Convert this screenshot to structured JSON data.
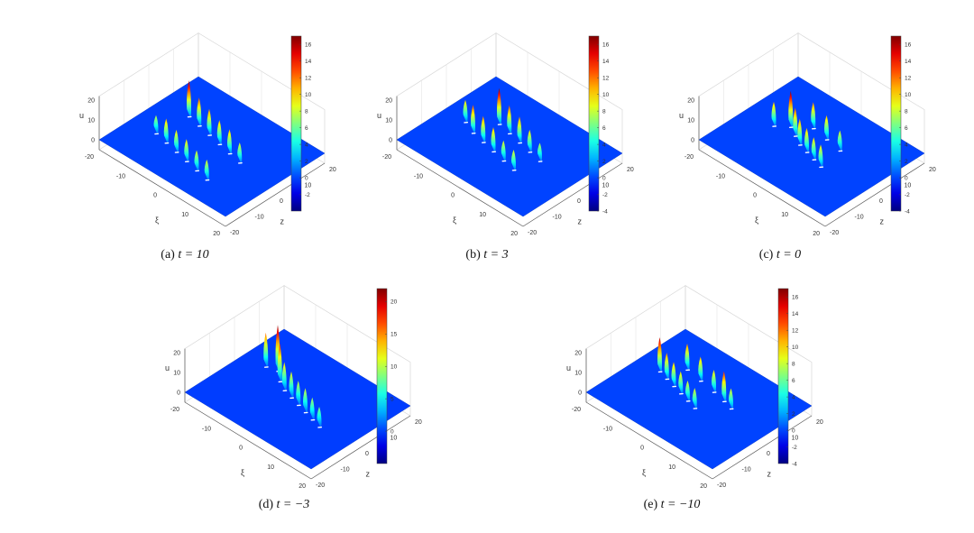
{
  "figure": {
    "panels": [
      {
        "label": "(a)",
        "equation": "t = 10"
      },
      {
        "label": "(b)",
        "equation": "t = 3"
      },
      {
        "label": "(c)",
        "equation": "t = 0"
      },
      {
        "label": "(d)",
        "equation": "t = −3"
      },
      {
        "label": "(e)",
        "equation": "t = −10"
      }
    ]
  },
  "chart_data": [
    {
      "type": "surface3d",
      "colormap": "jet",
      "xlabel": "ξ",
      "ylabel": "z",
      "zlabel": "u",
      "xlim": [
        -20,
        20
      ],
      "ylim": [
        -20,
        20
      ],
      "zlim": [
        -5,
        20
      ],
      "xticks": [
        "-20",
        "-10",
        "0",
        "10",
        "20"
      ],
      "yticks": [
        "-20",
        "-10",
        "0",
        "10",
        "20"
      ],
      "zticks": [
        "20",
        "10",
        "0"
      ],
      "clim": [
        -4,
        17
      ],
      "colorbar_ticks": [
        "16",
        "14",
        "12",
        "10",
        "8",
        "6",
        "4",
        "2",
        "0",
        "-2"
      ],
      "peaks": [
        {
          "x": -13,
          "y": -6,
          "u": 8
        },
        {
          "x": -9,
          "y": -7,
          "u": 11
        },
        {
          "x": -5,
          "y": -8,
          "u": 10
        },
        {
          "x": -1,
          "y": -9,
          "u": 10
        },
        {
          "x": 3,
          "y": -10,
          "u": 9
        },
        {
          "x": 7,
          "y": -11,
          "u": 9
        },
        {
          "x": -12,
          "y": 6,
          "u": 17
        },
        {
          "x": -8,
          "y": 5,
          "u": 13
        },
        {
          "x": -4,
          "y": 4,
          "u": 12
        },
        {
          "x": 0,
          "y": 3,
          "u": 11
        },
        {
          "x": 4,
          "y": 2,
          "u": 11
        },
        {
          "x": 8,
          "y": 1,
          "u": 9
        }
      ]
    },
    {
      "type": "surface3d",
      "colormap": "jet",
      "xlabel": "ξ",
      "ylabel": "z",
      "zlabel": "u",
      "xlim": [
        -20,
        20
      ],
      "ylim": [
        -20,
        20
      ],
      "zlim": [
        -5,
        20
      ],
      "xticks": [
        "-20",
        "-10",
        "0",
        "10",
        "20"
      ],
      "yticks": [
        "-20",
        "-10",
        "0",
        "10",
        "20"
      ],
      "zticks": [
        "20",
        "10",
        "0"
      ],
      "clim": [
        -4,
        17
      ],
      "colorbar_ticks": [
        "16",
        "14",
        "12",
        "10",
        "8",
        "6",
        "4",
        "2",
        "0",
        "-2",
        "-4"
      ],
      "peaks": [
        {
          "x": -14,
          "y": 0,
          "u": 10
        },
        {
          "x": -10,
          "y": -2,
          "u": 13
        },
        {
          "x": -6,
          "y": -3,
          "u": 12
        },
        {
          "x": -2,
          "y": -4,
          "u": 11
        },
        {
          "x": 2,
          "y": -5,
          "u": 9
        },
        {
          "x": 6,
          "y": -6,
          "u": 9
        },
        {
          "x": -8,
          "y": 6,
          "u": 17
        },
        {
          "x": -4,
          "y": 5,
          "u": 13
        },
        {
          "x": 0,
          "y": 4,
          "u": 12
        },
        {
          "x": 4,
          "y": 3,
          "u": 10
        },
        {
          "x": 8,
          "y": 2,
          "u": 8
        }
      ]
    },
    {
      "type": "surface3d",
      "colormap": "jet",
      "xlabel": "ξ",
      "ylabel": "z",
      "zlabel": "u",
      "xlim": [
        -20,
        20
      ],
      "ylim": [
        -20,
        20
      ],
      "zlim": [
        -5,
        20
      ],
      "xticks": [
        "-20",
        "-10",
        "0",
        "10",
        "20"
      ],
      "yticks": [
        "-20",
        "-10",
        "0",
        "10",
        "20"
      ],
      "zticks": [
        "20",
        "10",
        "0"
      ],
      "clim": [
        -4,
        17
      ],
      "colorbar_ticks": [
        "16",
        "14",
        "12",
        "10",
        "8",
        "6",
        "4",
        "2",
        "0",
        "-2",
        "-4"
      ],
      "peaks": [
        {
          "x": -12,
          "y": 0,
          "u": 11
        },
        {
          "x": -9,
          "y": 3,
          "u": 17
        },
        {
          "x": -6,
          "y": 1,
          "u": 13
        },
        {
          "x": -3,
          "y": -1,
          "u": 12
        },
        {
          "x": 0,
          "y": -2,
          "u": 11
        },
        {
          "x": 3,
          "y": -3,
          "u": 10
        },
        {
          "x": 6,
          "y": -4,
          "u": 10
        },
        {
          "x": -5,
          "y": 7,
          "u": 12
        },
        {
          "x": 0,
          "y": 6,
          "u": 11
        },
        {
          "x": 5,
          "y": 5,
          "u": 9
        }
      ]
    },
    {
      "type": "surface3d",
      "colormap": "jet",
      "xlabel": "ξ",
      "ylabel": "z",
      "zlabel": "u",
      "xlim": [
        -20,
        20
      ],
      "ylim": [
        -20,
        20
      ],
      "zlim": [
        -5,
        20
      ],
      "xticks": [
        "-20",
        "-10",
        "0",
        "10",
        "20"
      ],
      "yticks": [
        "-20",
        "-10",
        "0",
        "10",
        "20"
      ],
      "zticks": [
        "20",
        "10",
        "0"
      ],
      "clim": [
        -5,
        22
      ],
      "colorbar_ticks": [
        "20",
        "15",
        "10",
        "5",
        "0"
      ],
      "peaks": [
        {
          "x": -14,
          "y": 5,
          "u": 16
        },
        {
          "x": -11,
          "y": 6,
          "u": 22
        },
        {
          "x": -8,
          "y": 3,
          "u": 18
        },
        {
          "x": -5,
          "y": 1,
          "u": 13
        },
        {
          "x": -2,
          "y": 0,
          "u": 12
        },
        {
          "x": 1,
          "y": -1,
          "u": 11
        },
        {
          "x": 4,
          "y": -2,
          "u": 11
        },
        {
          "x": 7,
          "y": -3,
          "u": 10
        },
        {
          "x": 10,
          "y": -4,
          "u": 9
        }
      ]
    },
    {
      "type": "surface3d",
      "colormap": "jet",
      "xlabel": "ξ",
      "ylabel": "z",
      "zlabel": "u",
      "xlim": [
        -20,
        20
      ],
      "ylim": [
        -20,
        20
      ],
      "zlim": [
        -5,
        20
      ],
      "xticks": [
        "-20",
        "-10",
        "0",
        "10",
        "20"
      ],
      "yticks": [
        "-20",
        "-10",
        "0",
        "10",
        "20"
      ],
      "zticks": [
        "20",
        "10",
        "0"
      ],
      "clim": [
        -4,
        17
      ],
      "colorbar_ticks": [
        "16",
        "14",
        "12",
        "10",
        "8",
        "6",
        "4",
        "2",
        "0",
        "-2",
        "-4"
      ],
      "peaks": [
        {
          "x": -14,
          "y": 2,
          "u": 16
        },
        {
          "x": -11,
          "y": 1,
          "u": 12
        },
        {
          "x": -8,
          "y": 0,
          "u": 11
        },
        {
          "x": -5,
          "y": -1,
          "u": 10
        },
        {
          "x": -2,
          "y": -2,
          "u": 9
        },
        {
          "x": 1,
          "y": -3,
          "u": 9
        },
        {
          "x": -10,
          "y": 8,
          "u": 12
        },
        {
          "x": -5,
          "y": 7,
          "u": 11
        },
        {
          "x": 0,
          "y": 6,
          "u": 10
        },
        {
          "x": 4,
          "y": 5,
          "u": 14
        },
        {
          "x": 7,
          "y": 4,
          "u": 9
        }
      ]
    }
  ]
}
